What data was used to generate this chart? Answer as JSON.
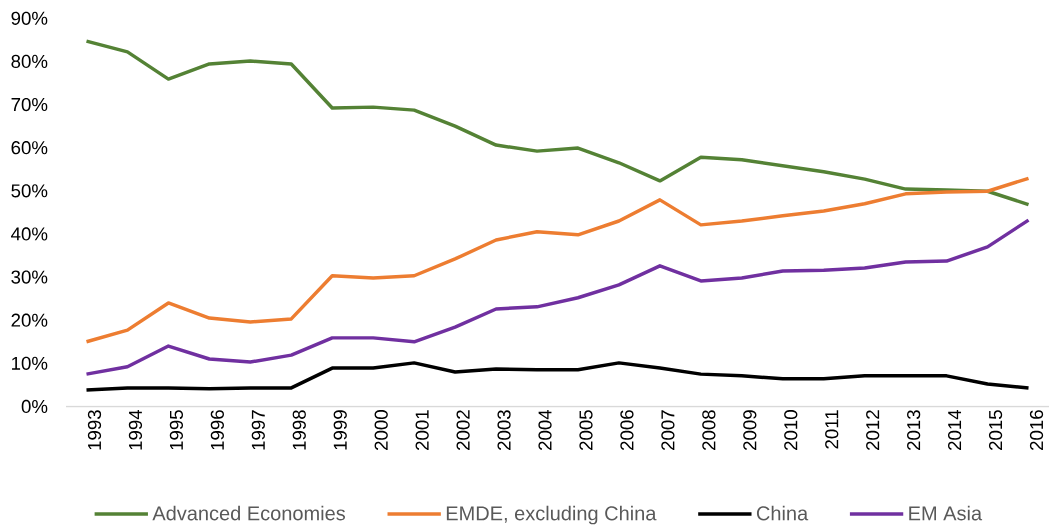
{
  "chart_data": {
    "type": "line",
    "categories": [
      "1993",
      "1994",
      "1995",
      "1996",
      "1997",
      "1998",
      "1999",
      "2000",
      "2001",
      "2002",
      "2003",
      "2004",
      "2005",
      "2006",
      "2007",
      "2008",
      "2009",
      "2010",
      "2011",
      "2012",
      "2013",
      "2014",
      "2015",
      "2016"
    ],
    "series": [
      {
        "name": "Advanced Economies",
        "color": "#548235",
        "values": [
          84.7,
          82.2,
          75.9,
          79.4,
          80.1,
          79.4,
          69.2,
          69.4,
          68.7,
          65.0,
          60.6,
          59.2,
          59.9,
          56.5,
          52.3,
          57.8,
          57.2,
          55.8,
          54.4,
          52.7,
          50.4,
          50.2,
          49.9,
          46.8
        ]
      },
      {
        "name": "EMDE, excluding China",
        "color": "#ed7d31",
        "values": [
          15.0,
          17.7,
          24.0,
          20.5,
          19.6,
          20.3,
          30.3,
          29.8,
          30.3,
          34.2,
          38.6,
          40.5,
          39.8,
          43.0,
          47.9,
          42.1,
          43.0,
          44.2,
          45.3,
          47.0,
          49.3,
          49.7,
          49.9,
          52.9
        ]
      },
      {
        "name": "China",
        "color": "#000000",
        "values": [
          3.8,
          4.3,
          4.3,
          4.1,
          4.3,
          4.3,
          8.9,
          8.9,
          10.1,
          8.0,
          8.7,
          8.5,
          8.5,
          10.1,
          8.9,
          7.5,
          7.1,
          6.4,
          6.4,
          7.1,
          7.1,
          7.1,
          5.2,
          4.3
        ]
      },
      {
        "name": "EM Asia",
        "color": "#7030a0",
        "values": [
          7.5,
          9.2,
          14.0,
          11.0,
          10.3,
          11.9,
          15.9,
          15.9,
          15.0,
          18.4,
          22.6,
          23.1,
          25.2,
          28.2,
          32.6,
          29.1,
          29.8,
          31.4,
          31.6,
          32.1,
          33.5,
          33.7,
          37.0,
          43.2
        ]
      }
    ],
    "ylim": [
      0,
      90
    ],
    "yticks": [
      {
        "value": 0,
        "label": "0%"
      },
      {
        "value": 10,
        "label": "10%"
      },
      {
        "value": 20,
        "label": "20%"
      },
      {
        "value": 30,
        "label": "30%"
      },
      {
        "value": 40,
        "label": "40%"
      },
      {
        "value": 50,
        "label": "50%"
      },
      {
        "value": 60,
        "label": "60%"
      },
      {
        "value": 70,
        "label": "70%"
      },
      {
        "value": 80,
        "label": "80%"
      },
      {
        "value": 90,
        "label": "90%"
      }
    ],
    "legend": "bottom"
  }
}
